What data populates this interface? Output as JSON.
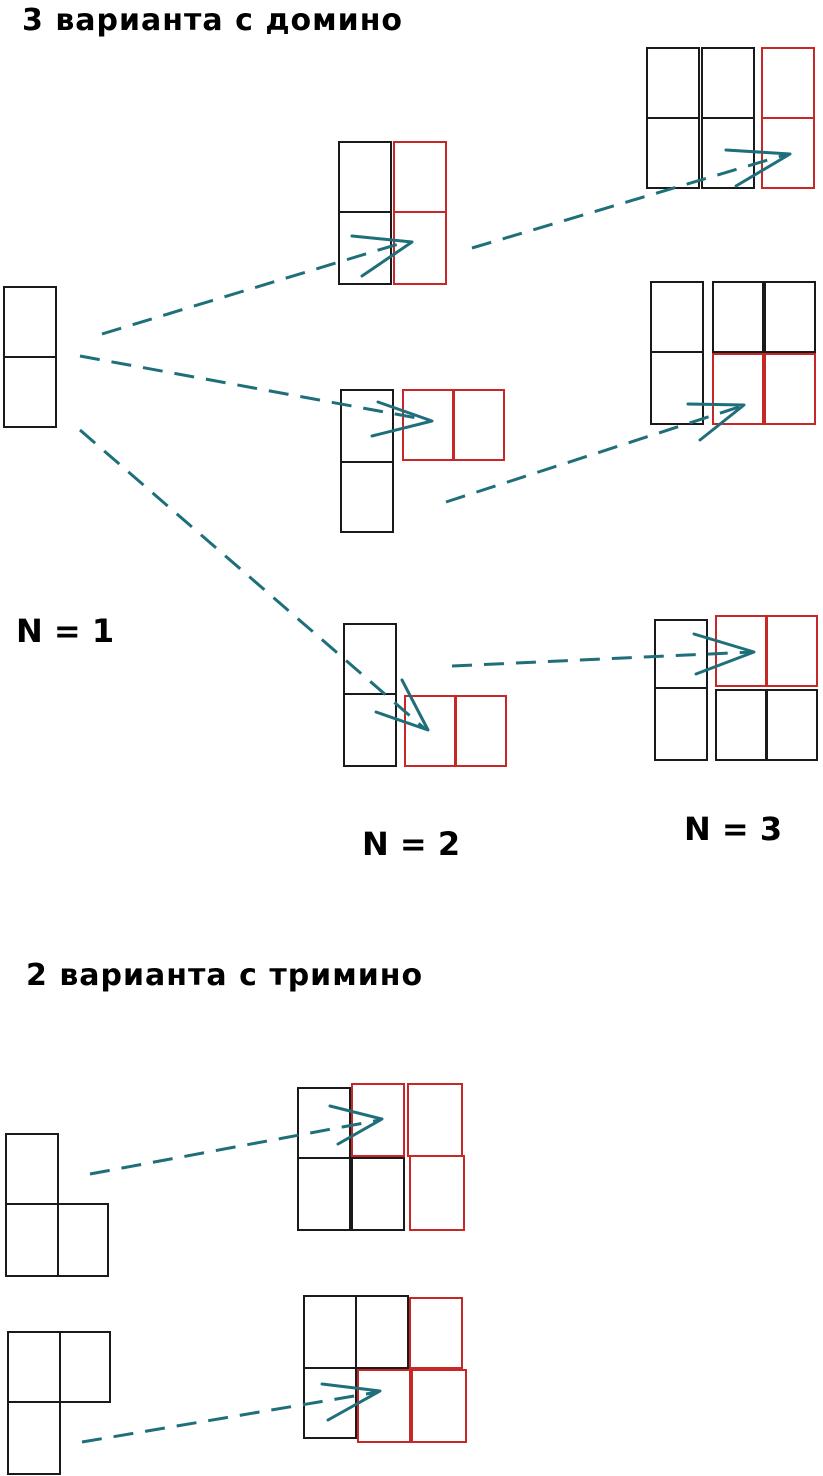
{
  "section_domino": {
    "title": "3 варианта с домино",
    "label_n1": "N = 1",
    "label_n2": "N = 2",
    "label_n3": "N = 3"
  },
  "section_trimino": {
    "title": "2 варианта с тримино"
  },
  "colors": {
    "existing_cell": "#1a1a1a",
    "added_cell": "#c62828",
    "arrow": "#1f6f7a"
  }
}
